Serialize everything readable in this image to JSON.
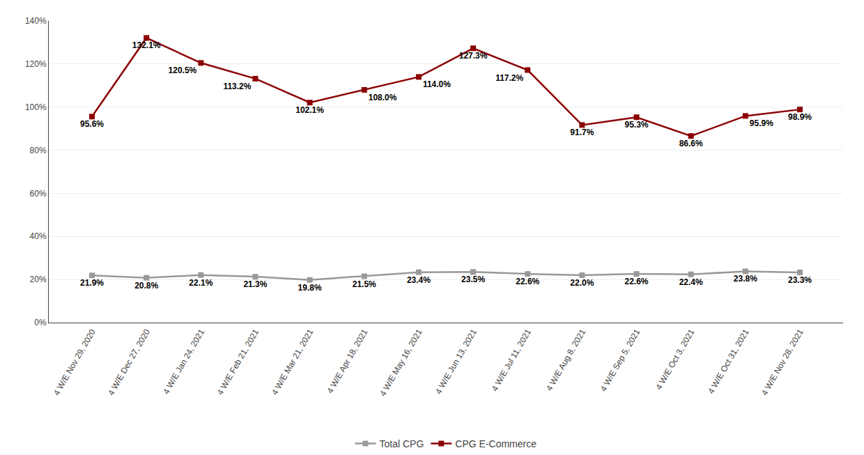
{
  "chart_data": {
    "type": "line",
    "categories": [
      "4 W/E Nov 29, 2020",
      "4 W/E Dec 27, 2020",
      "4 W/E Jan 24, 2021",
      "4 W/E Feb 21, 2021",
      "4 W/E Mar 21, 2021",
      "4 W/E Apr 18, 2021",
      "4 W/E May 16, 2021",
      "4 W/E Jun 13, 2021",
      "4 W/E Jul 11, 2021",
      "4 W/E Aug 8, 2021",
      "4 W/E Sep 5, 2021",
      "4 W/E Oct 3, 2021",
      "4 W/E Oct 31, 2021",
      "4 W/E Nov 28, 2021"
    ],
    "series": [
      {
        "name": "Total CPG",
        "color": "#999999",
        "marker": "square",
        "values": [
          21.9,
          20.8,
          22.1,
          21.3,
          19.8,
          21.5,
          23.4,
          23.5,
          22.6,
          22.0,
          22.6,
          22.4,
          23.8,
          23.3
        ],
        "value_labels": [
          "21.9%",
          "20.8%",
          "22.1%",
          "21.3%",
          "19.8%",
          "21.5%",
          "23.4%",
          "23.5%",
          "22.6%",
          "22.0%",
          "22.6%",
          "22.4%",
          "23.8%",
          "23.3%"
        ]
      },
      {
        "name": "CPG E-Commerce",
        "color": "#8B0000",
        "marker": "square",
        "values": [
          95.6,
          132.1,
          120.5,
          113.2,
          102.1,
          108.0,
          114.0,
          127.3,
          117.2,
          91.7,
          95.3,
          86.6,
          95.9,
          98.9
        ],
        "value_labels": [
          "95.6%",
          "132.1%",
          "120.5%",
          "113.2%",
          "102.1%",
          "108.0%",
          "114.0%",
          "127.3%",
          "117.2%",
          "91.7%",
          "95.3%",
          "86.6%",
          "95.9%",
          "98.9%"
        ]
      }
    ],
    "ylim": [
      0,
      140
    ],
    "yticks": [
      {
        "value": 0,
        "label": "0%"
      },
      {
        "value": 20,
        "label": "20%"
      },
      {
        "value": 40,
        "label": "40%"
      },
      {
        "value": 60,
        "label": "60%"
      },
      {
        "value": 80,
        "label": "80%"
      },
      {
        "value": 100,
        "label": "100%"
      },
      {
        "value": 120,
        "label": "120%"
      },
      {
        "value": 140,
        "label": "140%"
      }
    ],
    "grid": true,
    "legend": "bottom",
    "data_labels": true
  }
}
